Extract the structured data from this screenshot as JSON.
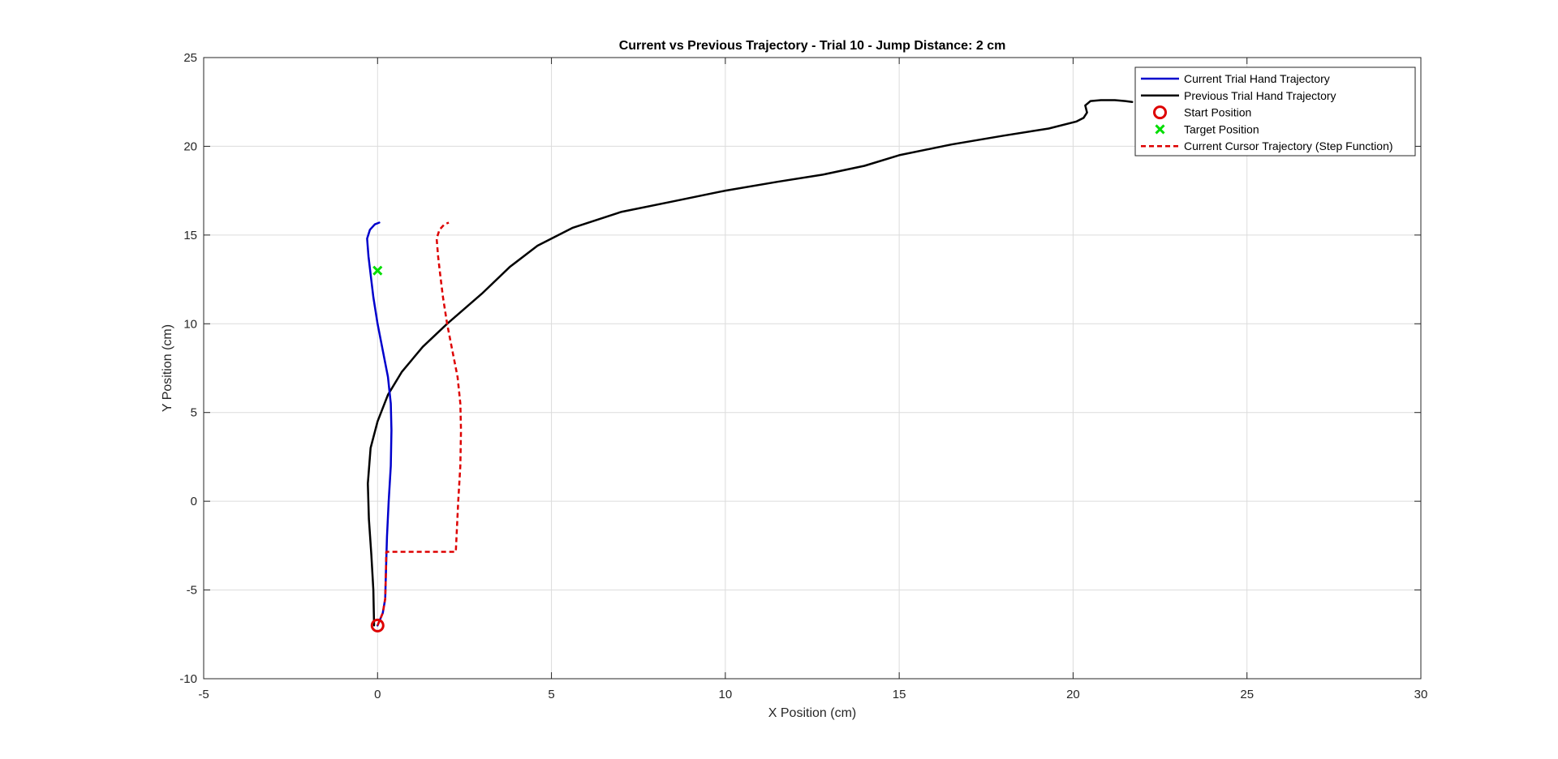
{
  "chart_data": {
    "type": "line",
    "title": "Current vs Previous Trajectory - Trial 10 - Jump Distance: 2 cm",
    "xlabel": "X Position (cm)",
    "ylabel": "Y Position (cm)",
    "xlim": [
      -5,
      30
    ],
    "ylim": [
      -10,
      25
    ],
    "xticks": [
      -5,
      0,
      5,
      10,
      15,
      20,
      25,
      30
    ],
    "yticks": [
      -10,
      -5,
      0,
      5,
      10,
      15,
      20,
      25
    ],
    "xtick_labels": [
      "-5",
      "0",
      "5",
      "10",
      "15",
      "20",
      "25",
      "30"
    ],
    "ytick_labels": [
      "-10",
      "-5",
      "0",
      "5",
      "10",
      "15",
      "20",
      "25"
    ],
    "grid": true,
    "legend_position": "top-right",
    "series": [
      {
        "name": "Current Trial Hand Trajectory",
        "color": "#0000cc",
        "style": "solid",
        "x": [
          0.0,
          0.15,
          0.22,
          0.24,
          0.27,
          0.32,
          0.38,
          0.4,
          0.38,
          0.3,
          0.15,
          0.0,
          -0.12,
          -0.2,
          -0.26,
          -0.3,
          -0.22,
          -0.08,
          0.05
        ],
        "y": [
          -7.0,
          -6.3,
          -5.5,
          -4.0,
          -2.0,
          0.0,
          2.0,
          4.0,
          5.5,
          7.0,
          8.5,
          10.0,
          11.5,
          12.8,
          13.8,
          14.8,
          15.3,
          15.6,
          15.7
        ]
      },
      {
        "name": "Previous Trial Hand Trajectory",
        "color": "#000000",
        "style": "solid",
        "x": [
          -0.1,
          -0.12,
          -0.18,
          -0.25,
          -0.28,
          -0.2,
          0.0,
          0.3,
          0.7,
          1.3,
          2.0,
          3.0,
          3.8,
          4.6,
          5.6,
          7.0,
          8.5,
          10.0,
          11.5,
          12.8,
          14.0,
          15.0,
          16.5,
          18.0,
          19.3,
          20.1,
          20.3,
          20.4,
          20.35,
          20.5,
          20.8,
          21.2,
          21.5,
          21.7
        ],
        "y": [
          -7.0,
          -5.0,
          -3.0,
          -1.0,
          1.0,
          3.0,
          4.5,
          6.0,
          7.3,
          8.7,
          10.0,
          11.7,
          13.2,
          14.4,
          15.4,
          16.3,
          16.9,
          17.5,
          18.0,
          18.4,
          18.9,
          19.5,
          20.1,
          20.6,
          21.0,
          21.4,
          21.6,
          21.9,
          22.3,
          22.55,
          22.6,
          22.6,
          22.55,
          22.5
        ]
      },
      {
        "name": "Start Position",
        "color": "#dd0000",
        "marker": "circle",
        "x": [
          0
        ],
        "y": [
          -7
        ]
      },
      {
        "name": "Target Position",
        "color": "#00dd00",
        "marker": "x",
        "x": [
          0
        ],
        "y": [
          13
        ]
      },
      {
        "name": "Current Cursor Trajectory (Step Function)",
        "color": "#dd0000",
        "style": "dashed",
        "x": [
          0.0,
          0.15,
          0.22,
          0.24,
          0.25,
          2.25,
          2.27,
          2.32,
          2.38,
          2.4,
          2.38,
          2.3,
          2.15,
          2.0,
          1.88,
          1.8,
          1.74,
          1.7,
          1.78,
          1.92,
          2.05
        ],
        "y": [
          -7.0,
          -6.3,
          -5.5,
          -4.0,
          -2.85,
          -2.85,
          -2.0,
          0.0,
          2.0,
          4.0,
          5.5,
          7.0,
          8.5,
          10.0,
          11.5,
          12.8,
          13.8,
          14.8,
          15.3,
          15.6,
          15.7
        ]
      }
    ]
  }
}
